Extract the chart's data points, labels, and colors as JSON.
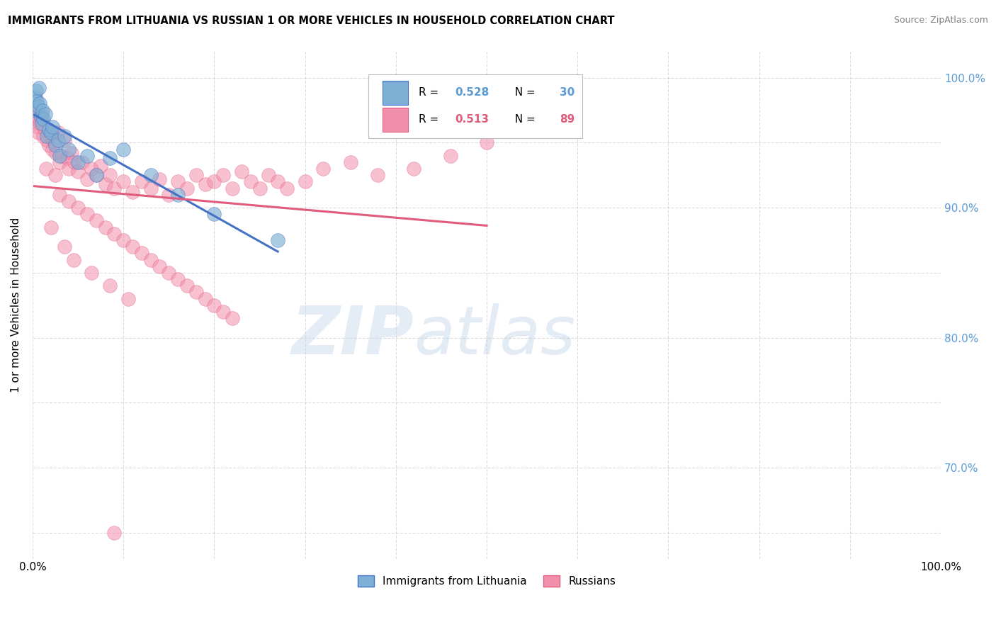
{
  "title": "IMMIGRANTS FROM LITHUANIA VS RUSSIAN 1 OR MORE VEHICLES IN HOUSEHOLD CORRELATION CHART",
  "source": "Source: ZipAtlas.com",
  "ylabel": "1 or more Vehicles in Household",
  "watermark": "ZIPatlas",
  "xlim": [
    0.0,
    100.0
  ],
  "ylim": [
    63.0,
    102.0
  ],
  "color_lithuania": "#7EB0D5",
  "color_russian": "#F28FAD",
  "color_trendline_lithuania": "#4472C4",
  "color_trendline_russian": "#E05C7A",
  "color_grid": "#BBBBBB",
  "color_right_labels": "#5B9BD5",
  "background_color": "#FFFFFF",
  "lith_x": [
    0.2,
    0.3,
    0.4,
    0.5,
    0.6,
    0.7,
    0.8,
    0.9,
    1.0,
    1.1,
    1.2,
    1.4,
    1.6,
    1.8,
    2.0,
    2.2,
    2.5,
    2.8,
    3.0,
    3.5,
    4.0,
    5.0,
    6.0,
    7.0,
    8.5,
    10.0,
    13.0,
    16.0,
    20.0,
    27.0
  ],
  "lith_y": [
    97.5,
    98.5,
    99.0,
    98.2,
    97.8,
    99.2,
    98.0,
    97.0,
    96.5,
    97.5,
    96.8,
    97.2,
    95.5,
    96.0,
    95.8,
    96.2,
    94.8,
    95.2,
    94.0,
    95.5,
    94.5,
    93.5,
    94.0,
    92.5,
    93.8,
    94.5,
    92.5,
    91.0,
    89.5,
    87.5
  ],
  "russ_x": [
    0.2,
    0.3,
    0.4,
    0.5,
    0.6,
    0.8,
    1.0,
    1.2,
    1.4,
    1.6,
    1.8,
    2.0,
    2.2,
    2.4,
    2.6,
    2.8,
    3.0,
    3.2,
    3.5,
    3.8,
    4.0,
    4.3,
    4.6,
    5.0,
    5.5,
    6.0,
    6.5,
    7.0,
    7.5,
    8.0,
    8.5,
    9.0,
    10.0,
    11.0,
    12.0,
    13.0,
    14.0,
    15.0,
    16.0,
    17.0,
    18.0,
    19.0,
    20.0,
    21.0,
    22.0,
    23.0,
    24.0,
    25.0,
    26.0,
    27.0,
    28.0,
    30.0,
    32.0,
    35.0,
    38.0,
    42.0,
    46.0,
    50.0,
    1.5,
    2.5,
    3.0,
    4.0,
    5.0,
    6.0,
    7.0,
    8.0,
    9.0,
    10.0,
    11.0,
    12.0,
    13.0,
    14.0,
    15.0,
    16.0,
    17.0,
    18.0,
    19.0,
    20.0,
    21.0,
    22.0,
    2.0,
    3.5,
    4.5,
    6.5,
    8.5,
    10.5,
    9.0
  ],
  "russ_y": [
    97.5,
    96.8,
    97.0,
    96.2,
    95.8,
    96.5,
    97.2,
    95.5,
    96.0,
    95.2,
    94.8,
    95.5,
    94.5,
    95.0,
    94.2,
    95.8,
    93.5,
    94.0,
    95.2,
    93.8,
    93.0,
    94.2,
    93.5,
    92.8,
    93.5,
    92.2,
    93.0,
    92.5,
    93.2,
    91.8,
    92.5,
    91.5,
    92.0,
    91.2,
    92.0,
    91.5,
    92.2,
    91.0,
    92.0,
    91.5,
    92.5,
    91.8,
    92.0,
    92.5,
    91.5,
    92.8,
    92.0,
    91.5,
    92.5,
    92.0,
    91.5,
    92.0,
    93.0,
    93.5,
    92.5,
    93.0,
    94.0,
    95.0,
    93.0,
    92.5,
    91.0,
    90.5,
    90.0,
    89.5,
    89.0,
    88.5,
    88.0,
    87.5,
    87.0,
    86.5,
    86.0,
    85.5,
    85.0,
    84.5,
    84.0,
    83.5,
    83.0,
    82.5,
    82.0,
    81.5,
    88.5,
    87.0,
    86.0,
    85.0,
    84.0,
    83.0,
    65.0
  ]
}
